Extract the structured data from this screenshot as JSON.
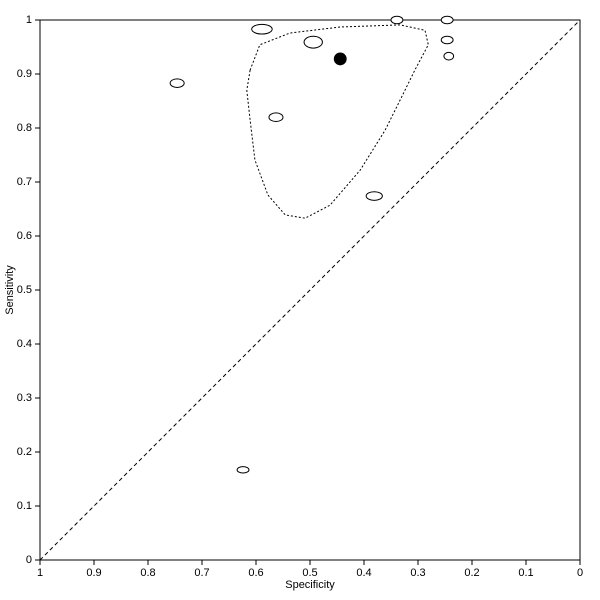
{
  "chart_data": {
    "type": "sroc",
    "x_label": "Specificity",
    "y_label": "Sensitivity",
    "xlim": [
      1,
      0
    ],
    "ylim": [
      0,
      1
    ],
    "xticks": [
      1,
      0.9,
      0.8,
      0.7,
      0.6,
      0.5,
      0.4,
      0.3,
      0.2,
      0.1,
      0
    ],
    "yticks": [
      0,
      0.1,
      0.2,
      0.3,
      0.4,
      0.5,
      0.6,
      0.7,
      0.8,
      0.9,
      1
    ],
    "series": [
      {
        "x": [
          0.589,
          0.494,
          0.339,
          0.246,
          0.246,
          0.243,
          0.746,
          0.563,
          0.381,
          0.624
        ],
        "values": [
          0.983,
          0.959,
          1.0,
          1.0,
          0.963,
          0.933,
          0.883,
          0.82,
          0.674,
          0.167
        ],
        "x_size": [
          0.019,
          0.017,
          0.011,
          0.011,
          0.011,
          0.009,
          0.013,
          0.013,
          0.015,
          0.011
        ],
        "y_size": [
          0.009,
          0.011,
          0.007,
          0.007,
          0.007,
          0.007,
          0.008,
          0.008,
          0.008,
          0.006
        ],
        "color": "#000000",
        "filled": false
      },
      {
        "x": [
          0.444
        ],
        "values": [
          0.928
        ],
        "x_size": [
          0.011
        ],
        "y_size": [
          0.011
        ],
        "color": "#000000",
        "filled": true
      }
    ],
    "confidence_region": {
      "x": [
        0.611,
        0.593,
        0.537,
        0.444,
        0.333,
        0.287,
        0.281,
        0.306,
        0.333,
        0.361,
        0.407,
        0.463,
        0.509,
        0.546,
        0.578,
        0.602,
        0.611,
        0.617
      ],
      "values": [
        0.907,
        0.954,
        0.976,
        0.987,
        0.991,
        0.981,
        0.954,
        0.907,
        0.852,
        0.796,
        0.722,
        0.657,
        0.633,
        0.639,
        0.676,
        0.741,
        0.815,
        0.87
      ]
    },
    "diagonal": true
  }
}
